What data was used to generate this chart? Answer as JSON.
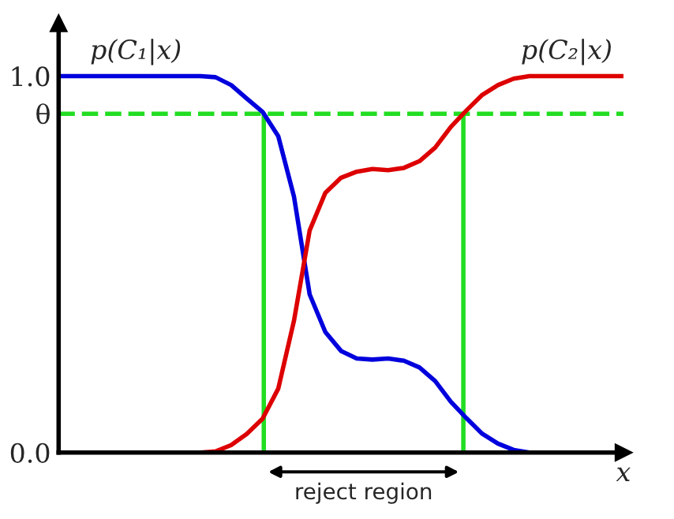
{
  "chart_data": {
    "type": "line",
    "categories": [
      null,
      null,
      null,
      null,
      null,
      null,
      null,
      null,
      null,
      null,
      null,
      null,
      null,
      null,
      null,
      null,
      null,
      null,
      null,
      null,
      null,
      null,
      null,
      null,
      null,
      null,
      null,
      null,
      null,
      null,
      null,
      null,
      null,
      null,
      null,
      null,
      null
    ],
    "series": [
      {
        "name": "p(C₁|x)",
        "color": "#0000dd",
        "values": [
          1,
          1,
          1,
          1,
          1,
          1,
          1,
          1,
          1,
          1,
          0.997,
          0.976,
          0.94,
          0.905,
          0.84,
          0.68,
          0.42,
          0.32,
          0.27,
          0.25,
          0.247,
          0.25,
          0.244,
          0.226,
          0.19,
          0.135,
          0.091,
          0.05,
          0.024,
          0.007,
          0,
          null,
          null,
          null,
          null,
          null,
          null
        ]
      },
      {
        "name": "p(C₂|x)",
        "color": "#dd0000",
        "values": [
          null,
          null,
          null,
          null,
          null,
          null,
          null,
          null,
          null,
          0,
          0.003,
          0.02,
          0.05,
          0.09,
          0.17,
          0.35,
          0.59,
          0.69,
          0.73,
          0.746,
          0.753,
          0.75,
          0.756,
          0.774,
          0.81,
          0.865,
          0.909,
          0.95,
          0.976,
          0.993,
          1,
          1,
          1,
          1,
          1,
          1,
          1
        ]
      }
    ],
    "xlabel": "x",
    "ylim": [
      0,
      1.14
    ],
    "yticks": [
      {
        "value": 0,
        "label": "0.0"
      },
      {
        "value": 0.9,
        "label": "θ"
      },
      {
        "value": 1,
        "label": "1.0"
      }
    ],
    "ref_lines": [
      {
        "axis": "y",
        "value": 0.9,
        "color": "#22dd22",
        "line_style": "dashed"
      }
    ],
    "annotations": [
      "reject region"
    ],
    "grid": false,
    "legend": false,
    "marker": "none",
    "line_style": "solid"
  }
}
